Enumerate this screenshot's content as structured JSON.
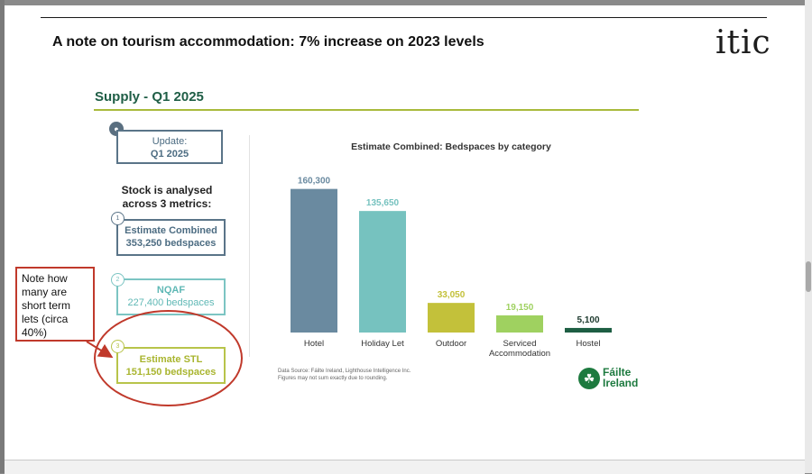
{
  "slide": {
    "title": "A note on tourism accommodation: 7% increase on 2023 levels",
    "logo": "itic"
  },
  "supply": {
    "title": "Supply - Q1 2025",
    "update_label": "Update:",
    "update_value": "Q1 2025",
    "stock_text": "Stock is analysed across 3 metrics:",
    "metrics": [
      {
        "number": "1",
        "name": "Estimate Combined",
        "value": "353,250 bedspaces",
        "color": "#5a7488"
      },
      {
        "number": "2",
        "name": "NQAF",
        "value": "227,400 bedspaces",
        "color": "#7cc5c3"
      },
      {
        "number": "3",
        "name": "Estimate STL",
        "value": "151,150 bedspaces",
        "color": "#b8c44a"
      }
    ]
  },
  "annotation": {
    "note_text": "Note how many are short term lets (circa 40%)",
    "color": "#c0392b"
  },
  "chart_data": {
    "type": "bar",
    "title": "Estimate Combined: Bedspaces by category",
    "categories": [
      "Hotel",
      "Holiday Let",
      "Outdoor",
      "Serviced Accommodation",
      "Hostel"
    ],
    "values": [
      160300,
      135650,
      33050,
      19150,
      5100
    ],
    "value_labels": [
      "160,300",
      "135,650",
      "33,050",
      "19,150",
      "5,100"
    ],
    "colors": [
      "#6a8aa0",
      "#76c2bf",
      "#c3c13a",
      "#9fd160",
      "#1d5e43"
    ],
    "ylim": [
      0,
      170000
    ],
    "grid": false
  },
  "footer": {
    "source_line1": "Data Source: Fáilte Ireland, Lighthouse Intelligence Inc.",
    "source_line2": "Figures may not sum exactly due to rounding.",
    "brand_line1": "Fáilte",
    "brand_line2": "Ireland"
  }
}
